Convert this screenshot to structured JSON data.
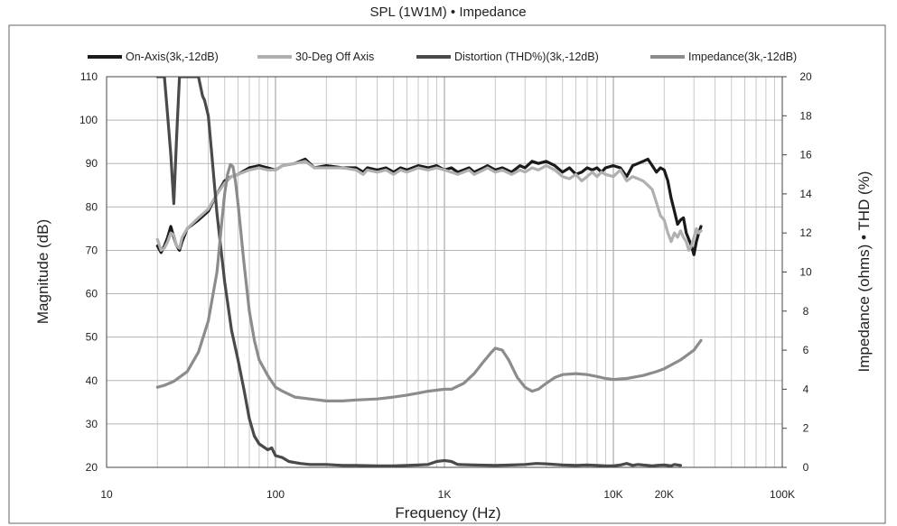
{
  "chart_data": {
    "type": "line",
    "title": "SPL (1W1M) • Impedance",
    "xlabel": "Frequency (Hz)",
    "ylabel": "Magnitude (dB)",
    "y2label": "Impedance (ohms) • THD (%)",
    "xscale": "log",
    "xlim": [
      10,
      100000
    ],
    "ylim": [
      20,
      110
    ],
    "y2lim": [
      0,
      20
    ],
    "grid": true,
    "legend_position": "top",
    "x_ticks": [
      {
        "value": 10,
        "label": "10"
      },
      {
        "value": 100,
        "label": "100"
      },
      {
        "value": 1000,
        "label": "1K"
      },
      {
        "value": 10000,
        "label": "10K"
      },
      {
        "value": 20000,
        "label": "20K"
      },
      {
        "value": 100000,
        "label": "100K"
      }
    ],
    "y_ticks": [
      {
        "value": 20,
        "label": "20"
      },
      {
        "value": 30,
        "label": "30"
      },
      {
        "value": 40,
        "label": "40"
      },
      {
        "value": 50,
        "label": "50"
      },
      {
        "value": 60,
        "label": "60"
      },
      {
        "value": 70,
        "label": "70"
      },
      {
        "value": 80,
        "label": "80"
      },
      {
        "value": 90,
        "label": "90"
      },
      {
        "value": 100,
        "label": "100"
      },
      {
        "value": 110,
        "label": "110"
      }
    ],
    "y2_ticks": [
      {
        "value": 0,
        "label": "0"
      },
      {
        "value": 2,
        "label": "2"
      },
      {
        "value": 4,
        "label": "4"
      },
      {
        "value": 6,
        "label": "6"
      },
      {
        "value": 8,
        "label": "8"
      },
      {
        "value": 10,
        "label": "10"
      },
      {
        "value": 12,
        "label": "12"
      },
      {
        "value": 14,
        "label": "14"
      },
      {
        "value": 16,
        "label": "16"
      },
      {
        "value": 18,
        "label": "18"
      },
      {
        "value": 20,
        "label": "20"
      }
    ],
    "series": [
      {
        "name": "On-Axis(3k,-12dB)",
        "axis": "left",
        "color": "#1a1a1a",
        "points": [
          [
            20,
            71
          ],
          [
            21,
            69.5
          ],
          [
            22,
            71
          ],
          [
            23,
            73
          ],
          [
            24,
            75.5
          ],
          [
            25,
            73
          ],
          [
            26,
            71
          ],
          [
            27,
            70
          ],
          [
            28,
            72
          ],
          [
            30,
            75
          ],
          [
            35,
            77
          ],
          [
            40,
            79
          ],
          [
            45,
            83
          ],
          [
            50,
            86
          ],
          [
            55,
            87
          ],
          [
            60,
            87.5
          ],
          [
            70,
            89
          ],
          [
            80,
            89.5
          ],
          [
            90,
            89
          ],
          [
            100,
            88.5
          ],
          [
            110,
            89.5
          ],
          [
            130,
            90
          ],
          [
            150,
            91
          ],
          [
            170,
            89
          ],
          [
            200,
            89.5
          ],
          [
            250,
            89
          ],
          [
            300,
            89
          ],
          [
            330,
            88
          ],
          [
            350,
            89
          ],
          [
            400,
            88.5
          ],
          [
            450,
            89
          ],
          [
            500,
            88
          ],
          [
            550,
            89
          ],
          [
            600,
            88.5
          ],
          [
            700,
            89.5
          ],
          [
            800,
            89
          ],
          [
            900,
            89.5
          ],
          [
            1000,
            88.5
          ],
          [
            1100,
            89
          ],
          [
            1200,
            88
          ],
          [
            1300,
            88.5
          ],
          [
            1400,
            89
          ],
          [
            1500,
            88
          ],
          [
            1700,
            89
          ],
          [
            1800,
            89.5
          ],
          [
            2000,
            88.5
          ],
          [
            2200,
            89
          ],
          [
            2500,
            88
          ],
          [
            2800,
            89.5
          ],
          [
            3000,
            89
          ],
          [
            3300,
            90.5
          ],
          [
            3600,
            90
          ],
          [
            4000,
            90.5
          ],
          [
            4500,
            89.5
          ],
          [
            5000,
            88
          ],
          [
            5500,
            89
          ],
          [
            6000,
            87.5
          ],
          [
            6500,
            88
          ],
          [
            7000,
            89
          ],
          [
            7500,
            88.5
          ],
          [
            8000,
            89
          ],
          [
            8500,
            88
          ],
          [
            9000,
            89
          ],
          [
            10000,
            89.5
          ],
          [
            11000,
            89
          ],
          [
            12000,
            87
          ],
          [
            13000,
            89.5
          ],
          [
            14000,
            90
          ],
          [
            15000,
            90.5
          ],
          [
            16000,
            91
          ],
          [
            17000,
            89.5
          ],
          [
            18000,
            88
          ],
          [
            19000,
            89
          ],
          [
            20000,
            88.5
          ],
          [
            21000,
            86
          ],
          [
            22000,
            82
          ],
          [
            23000,
            79
          ],
          [
            24000,
            76
          ],
          [
            25000,
            77
          ],
          [
            26000,
            77.5
          ],
          [
            27000,
            74
          ],
          [
            28000,
            72.5
          ],
          [
            29000,
            71
          ],
          [
            30000,
            69
          ],
          [
            31000,
            72
          ],
          [
            32000,
            74
          ],
          [
            33000,
            75.5
          ]
        ]
      },
      {
        "name": "30-Deg Off Axis",
        "axis": "left",
        "color": "#b0b0b0",
        "points": [
          [
            20,
            72.5
          ],
          [
            21,
            70
          ],
          [
            22,
            70.5
          ],
          [
            23,
            72
          ],
          [
            24,
            74
          ],
          [
            25,
            73.5
          ],
          [
            26,
            71
          ],
          [
            27,
            70.5
          ],
          [
            28,
            73
          ],
          [
            30,
            75
          ],
          [
            35,
            77.5
          ],
          [
            40,
            79.5
          ],
          [
            45,
            83
          ],
          [
            50,
            85.5
          ],
          [
            55,
            87
          ],
          [
            60,
            87.5
          ],
          [
            70,
            88.5
          ],
          [
            80,
            89
          ],
          [
            90,
            88.5
          ],
          [
            100,
            88.5
          ],
          [
            110,
            89.5
          ],
          [
            130,
            90
          ],
          [
            150,
            90.5
          ],
          [
            170,
            89
          ],
          [
            200,
            89
          ],
          [
            250,
            89
          ],
          [
            300,
            88.5
          ],
          [
            330,
            87.5
          ],
          [
            350,
            88.5
          ],
          [
            400,
            88
          ],
          [
            450,
            88.5
          ],
          [
            500,
            87.5
          ],
          [
            550,
            88.5
          ],
          [
            600,
            88
          ],
          [
            700,
            89
          ],
          [
            800,
            88.5
          ],
          [
            900,
            89
          ],
          [
            1000,
            88.5
          ],
          [
            1100,
            88
          ],
          [
            1200,
            87.5
          ],
          [
            1300,
            88
          ],
          [
            1400,
            88.5
          ],
          [
            1500,
            87.5
          ],
          [
            1700,
            88.5
          ],
          [
            1800,
            89
          ],
          [
            2000,
            88
          ],
          [
            2200,
            88.5
          ],
          [
            2500,
            87.5
          ],
          [
            2800,
            88.5
          ],
          [
            3000,
            88
          ],
          [
            3300,
            89
          ],
          [
            3600,
            88.5
          ],
          [
            4000,
            89.5
          ],
          [
            4500,
            88.5
          ],
          [
            5000,
            87
          ],
          [
            5500,
            86.5
          ],
          [
            6000,
            87.5
          ],
          [
            6500,
            86
          ],
          [
            7000,
            87
          ],
          [
            7500,
            88
          ],
          [
            8000,
            87
          ],
          [
            8500,
            88
          ],
          [
            9000,
            87.5
          ],
          [
            10000,
            87
          ],
          [
            11000,
            88.5
          ],
          [
            12000,
            86
          ],
          [
            13000,
            87
          ],
          [
            14000,
            86.5
          ],
          [
            15000,
            86
          ],
          [
            16000,
            85
          ],
          [
            17000,
            84
          ],
          [
            18000,
            81
          ],
          [
            19000,
            78
          ],
          [
            20000,
            77
          ],
          [
            21000,
            74
          ],
          [
            22000,
            72
          ],
          [
            23000,
            74
          ],
          [
            24000,
            73
          ],
          [
            25000,
            74.5
          ],
          [
            26000,
            73
          ],
          [
            27000,
            72
          ],
          [
            28000,
            70
          ],
          [
            29000,
            71
          ],
          [
            30000,
            73
          ],
          [
            31000,
            75
          ],
          [
            32000,
            74
          ],
          [
            33000,
            74.5
          ]
        ]
      },
      {
        "name": "Distortion (THD%)(3k,-12dB)",
        "axis": "right",
        "color": "#4a4a4a",
        "points": [
          [
            20,
            20
          ],
          [
            22,
            20
          ],
          [
            23,
            18
          ],
          [
            24,
            16
          ],
          [
            25,
            13.5
          ],
          [
            26,
            17
          ],
          [
            27,
            20
          ],
          [
            35,
            20
          ],
          [
            37,
            19
          ],
          [
            38,
            18.8
          ],
          [
            40,
            18
          ],
          [
            42,
            16
          ],
          [
            45,
            13
          ],
          [
            50,
            9.5
          ],
          [
            55,
            7
          ],
          [
            60,
            5.5
          ],
          [
            65,
            4
          ],
          [
            70,
            2.5
          ],
          [
            75,
            1.6
          ],
          [
            80,
            1.2
          ],
          [
            90,
            0.9
          ],
          [
            95,
            1
          ],
          [
            100,
            0.6
          ],
          [
            110,
            0.5
          ],
          [
            120,
            0.3
          ],
          [
            140,
            0.2
          ],
          [
            160,
            0.15
          ],
          [
            200,
            0.15
          ],
          [
            250,
            0.1
          ],
          [
            300,
            0.1
          ],
          [
            400,
            0.08
          ],
          [
            500,
            0.08
          ],
          [
            600,
            0.1
          ],
          [
            700,
            0.12
          ],
          [
            800,
            0.15
          ],
          [
            900,
            0.3
          ],
          [
            1000,
            0.35
          ],
          [
            1100,
            0.3
          ],
          [
            1200,
            0.15
          ],
          [
            1500,
            0.12
          ],
          [
            2000,
            0.1
          ],
          [
            2500,
            0.12
          ],
          [
            3000,
            0.15
          ],
          [
            3500,
            0.2
          ],
          [
            4000,
            0.18
          ],
          [
            5000,
            0.12
          ],
          [
            6000,
            0.1
          ],
          [
            7000,
            0.12
          ],
          [
            8000,
            0.1
          ],
          [
            9000,
            0.08
          ],
          [
            10000,
            0.08
          ],
          [
            11000,
            0.12
          ],
          [
            12000,
            0.2
          ],
          [
            13000,
            0.1
          ],
          [
            14000,
            0.15
          ],
          [
            15000,
            0.12
          ],
          [
            16000,
            0.1
          ],
          [
            17000,
            0.08
          ],
          [
            18000,
            0.1
          ],
          [
            20000,
            0.12
          ],
          [
            22000,
            0.08
          ],
          [
            23000,
            0.15
          ],
          [
            25000,
            0.1
          ]
        ]
      },
      {
        "name": "Impedance(3k,-12dB)",
        "axis": "right",
        "color": "#8c8c8c",
        "points": [
          [
            20,
            4.1
          ],
          [
            22,
            4.2
          ],
          [
            25,
            4.4
          ],
          [
            30,
            4.9
          ],
          [
            35,
            5.9
          ],
          [
            40,
            7.5
          ],
          [
            45,
            10
          ],
          [
            48,
            12.5
          ],
          [
            50,
            14
          ],
          [
            52,
            15
          ],
          [
            54,
            15.5
          ],
          [
            56,
            15.4
          ],
          [
            58,
            14.6
          ],
          [
            60,
            13.5
          ],
          [
            65,
            10.5
          ],
          [
            70,
            8
          ],
          [
            75,
            6.5
          ],
          [
            80,
            5.5
          ],
          [
            90,
            4.7
          ],
          [
            100,
            4.1
          ],
          [
            110,
            3.9
          ],
          [
            130,
            3.6
          ],
          [
            160,
            3.5
          ],
          [
            200,
            3.4
          ],
          [
            250,
            3.4
          ],
          [
            300,
            3.45
          ],
          [
            400,
            3.5
          ],
          [
            500,
            3.6
          ],
          [
            600,
            3.7
          ],
          [
            700,
            3.8
          ],
          [
            800,
            3.9
          ],
          [
            1000,
            4
          ],
          [
            1100,
            4
          ],
          [
            1300,
            4.3
          ],
          [
            1500,
            4.8
          ],
          [
            1700,
            5.4
          ],
          [
            1900,
            5.9
          ],
          [
            2000,
            6.1
          ],
          [
            2200,
            6
          ],
          [
            2400,
            5.5
          ],
          [
            2700,
            4.6
          ],
          [
            3000,
            4.1
          ],
          [
            3300,
            3.9
          ],
          [
            3600,
            4
          ],
          [
            4000,
            4.3
          ],
          [
            4500,
            4.6
          ],
          [
            5000,
            4.75
          ],
          [
            6000,
            4.8
          ],
          [
            7000,
            4.75
          ],
          [
            8000,
            4.65
          ],
          [
            9000,
            4.55
          ],
          [
            10000,
            4.5
          ],
          [
            12000,
            4.55
          ],
          [
            15000,
            4.7
          ],
          [
            18000,
            4.9
          ],
          [
            20000,
            5.05
          ],
          [
            25000,
            5.5
          ],
          [
            30000,
            6
          ],
          [
            33000,
            6.5
          ]
        ]
      }
    ]
  }
}
